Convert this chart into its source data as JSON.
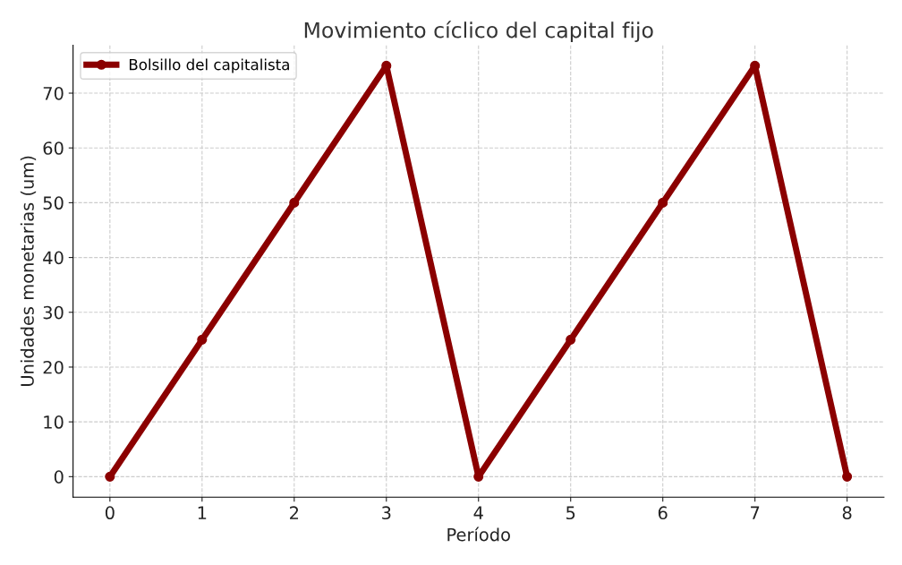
{
  "chart_data": {
    "type": "line",
    "title": "Movimiento cíclico del capital fijo",
    "xlabel": "Período",
    "ylabel": "Unidades monetarias (um)",
    "x": [
      0,
      1,
      2,
      3,
      4,
      5,
      6,
      7,
      8
    ],
    "series": [
      {
        "name": "Bolsillo del capitalista",
        "color": "#8b0000",
        "values": [
          0,
          25,
          50,
          75,
          0,
          25,
          50,
          75,
          0
        ]
      }
    ],
    "xlim": [
      -0.4,
      8.4
    ],
    "xticks": [
      0,
      1,
      2,
      3,
      4,
      5,
      6,
      7,
      8
    ],
    "ylim": [
      -3.75,
      78.75
    ],
    "yticks": [
      0,
      10,
      20,
      30,
      40,
      50,
      60,
      70
    ],
    "grid": true,
    "legend": "top left",
    "marker": "circle",
    "line_style": "solid"
  }
}
